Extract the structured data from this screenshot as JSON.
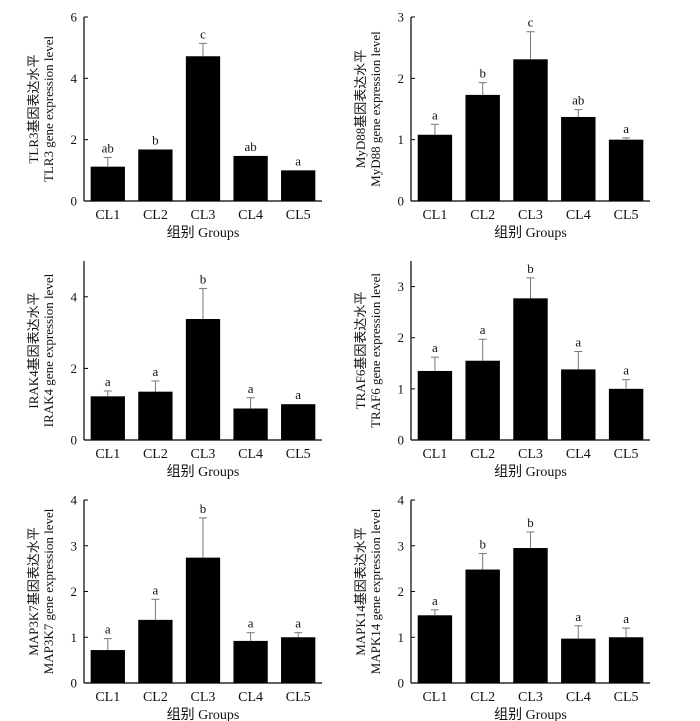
{
  "figure": {
    "xlabel": "组别  Groups"
  },
  "chart_data": [
    {
      "type": "bar",
      "gene": "TLR3",
      "ylabel_cn": "TLR3基因表达水平",
      "ylabel_en": "TLR3 gene expression level",
      "categories": [
        "CL1",
        "CL2",
        "CL3",
        "CL4",
        "CL5"
      ],
      "values": [
        1.12,
        1.68,
        4.72,
        1.47,
        1.0
      ],
      "errors": [
        0.3,
        0.0,
        0.42,
        0.0,
        0.0
      ],
      "significance": [
        "ab",
        "b",
        "c",
        "ab",
        "a"
      ],
      "ylim": [
        0,
        6
      ],
      "yticks": [
        0,
        2,
        4,
        6
      ],
      "xlabel": "组别  Groups",
      "bar_color": "#000000"
    },
    {
      "type": "bar",
      "gene": "MyD88",
      "ylabel_cn": "MyD88基因表达水平",
      "ylabel_en": "MyD88 gene expression level",
      "categories": [
        "CL1",
        "CL2",
        "CL3",
        "CL4",
        "CL5"
      ],
      "values": [
        1.08,
        1.73,
        2.31,
        1.37,
        1.0
      ],
      "errors": [
        0.17,
        0.2,
        0.45,
        0.12,
        0.03
      ],
      "significance": [
        "a",
        "b",
        "c",
        "ab",
        "a"
      ],
      "ylim": [
        0,
        3
      ],
      "yticks": [
        0,
        1,
        2,
        3
      ],
      "xlabel": "组别  Groups",
      "bar_color": "#000000"
    },
    {
      "type": "bar",
      "gene": "IRAK4",
      "ylabel_cn": "IRAK4基因表达水平",
      "ylabel_en": "IRAK4 gene expression level",
      "categories": [
        "CL1",
        "CL2",
        "CL3",
        "CL4",
        "CL5"
      ],
      "values": [
        1.22,
        1.35,
        3.38,
        0.88,
        1.0
      ],
      "errors": [
        0.15,
        0.3,
        0.85,
        0.3,
        0.0
      ],
      "significance": [
        "a",
        "a",
        "b",
        "a",
        "a"
      ],
      "ylim": [
        0,
        5
      ],
      "yticks": [
        0,
        2,
        4
      ],
      "xlabel": "组别  Groups",
      "bar_color": "#000000"
    },
    {
      "type": "bar",
      "gene": "TRAF6",
      "ylabel_cn": "TRAF6基因表达水平",
      "ylabel_en": "TRAF6 gene expression level",
      "categories": [
        "CL1",
        "CL2",
        "CL3",
        "CL4",
        "CL5"
      ],
      "values": [
        1.35,
        1.55,
        2.77,
        1.38,
        1.0
      ],
      "errors": [
        0.27,
        0.42,
        0.4,
        0.35,
        0.18
      ],
      "significance": [
        "a",
        "a",
        "b",
        "a",
        "a"
      ],
      "ylim": [
        0,
        3.5
      ],
      "yticks": [
        0,
        1,
        2,
        3
      ],
      "xlabel": "组别  Groups",
      "bar_color": "#000000"
    },
    {
      "type": "bar",
      "gene": "MAP3K7",
      "ylabel_cn": "MAP3K7基因表达水平",
      "ylabel_en": "MAP3K7 gene expression level",
      "categories": [
        "CL1",
        "CL2",
        "CL3",
        "CL4",
        "CL5"
      ],
      "values": [
        0.72,
        1.38,
        2.74,
        0.92,
        1.0
      ],
      "errors": [
        0.25,
        0.45,
        0.87,
        0.18,
        0.1
      ],
      "significance": [
        "a",
        "a",
        "b",
        "a",
        "a"
      ],
      "ylim": [
        0,
        4
      ],
      "yticks": [
        0,
        1,
        2,
        3,
        4
      ],
      "xlabel": "组别  Groups",
      "bar_color": "#000000"
    },
    {
      "type": "bar",
      "gene": "MAPK14",
      "ylabel_cn": "MAPK14基因表达水平",
      "ylabel_en": "MAPK14 gene expression level",
      "categories": [
        "CL1",
        "CL2",
        "CL3",
        "CL4",
        "CL5"
      ],
      "values": [
        1.48,
        2.48,
        2.95,
        0.97,
        1.0
      ],
      "errors": [
        0.12,
        0.35,
        0.35,
        0.28,
        0.2
      ],
      "significance": [
        "a",
        "b",
        "b",
        "a",
        "a"
      ],
      "ylim": [
        0,
        4
      ],
      "yticks": [
        0,
        1,
        2,
        3,
        4
      ],
      "xlabel": "组别  Groups",
      "bar_color": "#000000"
    }
  ]
}
